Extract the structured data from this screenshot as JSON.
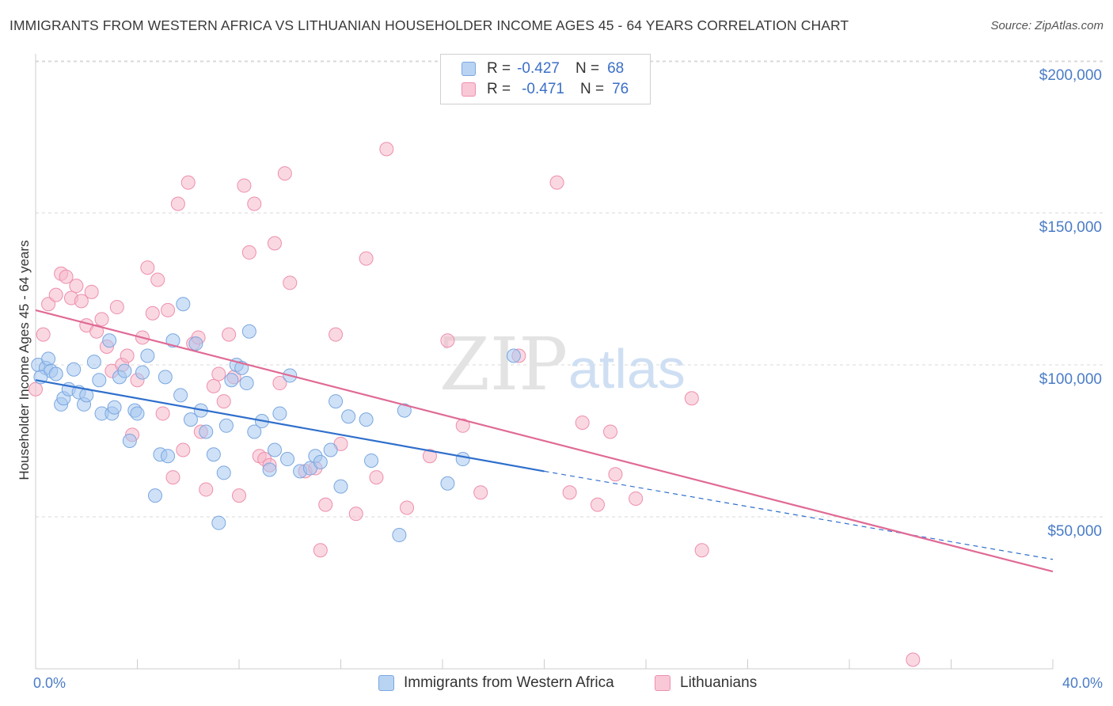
{
  "title": "IMMIGRANTS FROM WESTERN AFRICA VS LITHUANIAN HOUSEHOLDER INCOME AGES 45 - 64 YEARS CORRELATION CHART",
  "source": "Source: ZipAtlas.com",
  "watermark": {
    "zip": "ZIP",
    "atlas": "atlas"
  },
  "colors": {
    "blue": "#a8c8f0",
    "blue_stroke": "#7aa7e0",
    "blue_line": "#2f6fcc",
    "pink": "#f6b8cb",
    "pink_stroke": "#ee8fac",
    "pink_line": "#e06a95",
    "axis_text": "#4a7cc7",
    "grid": "#d8d8d8"
  },
  "legend": {
    "rows": [
      {
        "r_label": "R =",
        "r_value": "-0.427",
        "n_label": "N =",
        "n_value": "68"
      },
      {
        "r_label": "R =",
        "r_value": "-0.471",
        "n_label": "N =",
        "n_value": "76"
      }
    ]
  },
  "bottom_legend": [
    "Immigrants from Western Africa",
    "Lithuanians"
  ],
  "chart_data": {
    "type": "scatter",
    "xlabel": "",
    "ylabel": "Householder Income Ages 45 - 64 years",
    "xlim": [
      0,
      40
    ],
    "ylim": [
      0,
      210000
    ],
    "x_tick_labels": [
      "0.0%",
      "40.0%"
    ],
    "y_ticks": [
      {
        "value": 50000,
        "label": "$50,000"
      },
      {
        "value": 100000,
        "label": "$100,000"
      },
      {
        "value": 150000,
        "label": "$150,000"
      },
      {
        "value": 200000,
        "label": "$200,000"
      }
    ],
    "grid": true,
    "legend_placement": "top-center",
    "series": [
      {
        "name": "Immigrants from Western Africa",
        "color": "#a8c8f0",
        "trend": {
          "x0": 0,
          "y0": 95000,
          "x1": 20,
          "y1": 65000,
          "dash_to_x": 40,
          "dash_to_y": 36000
        },
        "points": [
          [
            0.1,
            100000
          ],
          [
            0.4,
            99000
          ],
          [
            0.5,
            102000
          ],
          [
            0.6,
            98000
          ],
          [
            0.8,
            97000
          ],
          [
            1.0,
            87000
          ],
          [
            1.1,
            89000
          ],
          [
            1.3,
            92000
          ],
          [
            1.5,
            98500
          ],
          [
            1.7,
            91000
          ],
          [
            1.9,
            87000
          ],
          [
            2.0,
            90000
          ],
          [
            2.3,
            101000
          ],
          [
            2.5,
            95000
          ],
          [
            2.6,
            84000
          ],
          [
            2.9,
            108000
          ],
          [
            3.0,
            84000
          ],
          [
            3.1,
            86000
          ],
          [
            3.3,
            96000
          ],
          [
            3.5,
            98000
          ],
          [
            3.7,
            75000
          ],
          [
            3.9,
            85000
          ],
          [
            4.0,
            84000
          ],
          [
            4.2,
            97500
          ],
          [
            4.4,
            103000
          ],
          [
            4.7,
            57000
          ],
          [
            4.9,
            70500
          ],
          [
            5.1,
            96000
          ],
          [
            5.2,
            70000
          ],
          [
            5.4,
            108000
          ],
          [
            5.7,
            90000
          ],
          [
            5.8,
            120000
          ],
          [
            6.1,
            82000
          ],
          [
            6.3,
            107000
          ],
          [
            6.5,
            85000
          ],
          [
            6.7,
            78000
          ],
          [
            7.0,
            70500
          ],
          [
            7.2,
            48000
          ],
          [
            7.4,
            64500
          ],
          [
            7.5,
            80000
          ],
          [
            7.7,
            95000
          ],
          [
            7.9,
            100000
          ],
          [
            8.1,
            99000
          ],
          [
            8.3,
            94000
          ],
          [
            8.4,
            111000
          ],
          [
            8.6,
            78000
          ],
          [
            8.9,
            81500
          ],
          [
            9.2,
            65500
          ],
          [
            9.4,
            72000
          ],
          [
            9.6,
            84000
          ],
          [
            9.9,
            69000
          ],
          [
            10.0,
            96500
          ],
          [
            10.4,
            65000
          ],
          [
            10.8,
            66000
          ],
          [
            11.0,
            70000
          ],
          [
            11.2,
            68000
          ],
          [
            11.6,
            72000
          ],
          [
            11.8,
            88000
          ],
          [
            12.0,
            60000
          ],
          [
            12.3,
            83000
          ],
          [
            13.0,
            82000
          ],
          [
            13.2,
            68500
          ],
          [
            14.3,
            44000
          ],
          [
            14.5,
            85000
          ],
          [
            16.2,
            61000
          ],
          [
            16.8,
            69000
          ],
          [
            18.8,
            103000
          ],
          [
            0.2,
            96000
          ]
        ]
      },
      {
        "name": "Lithuanians",
        "color": "#f6b8cb",
        "trend": {
          "x0": 0,
          "y0": 118000,
          "x1": 40,
          "y1": 32000
        },
        "points": [
          [
            0.0,
            92000
          ],
          [
            0.3,
            110000
          ],
          [
            0.5,
            120000
          ],
          [
            0.8,
            123000
          ],
          [
            1.0,
            130000
          ],
          [
            1.2,
            129000
          ],
          [
            1.4,
            122000
          ],
          [
            1.6,
            126000
          ],
          [
            1.8,
            121000
          ],
          [
            2.0,
            113000
          ],
          [
            2.2,
            124000
          ],
          [
            2.4,
            111000
          ],
          [
            2.6,
            115000
          ],
          [
            2.8,
            106000
          ],
          [
            3.0,
            98000
          ],
          [
            3.2,
            119000
          ],
          [
            3.4,
            100000
          ],
          [
            3.6,
            103000
          ],
          [
            3.8,
            77000
          ],
          [
            4.0,
            95000
          ],
          [
            4.2,
            109000
          ],
          [
            4.4,
            132000
          ],
          [
            4.6,
            117000
          ],
          [
            4.8,
            128000
          ],
          [
            5.0,
            84000
          ],
          [
            5.2,
            118000
          ],
          [
            5.4,
            63000
          ],
          [
            5.6,
            153000
          ],
          [
            5.8,
            72000
          ],
          [
            6.0,
            160000
          ],
          [
            6.2,
            107000
          ],
          [
            6.4,
            109000
          ],
          [
            6.5,
            78000
          ],
          [
            6.7,
            59000
          ],
          [
            7.0,
            93000
          ],
          [
            7.2,
            97000
          ],
          [
            7.4,
            88000
          ],
          [
            7.6,
            110000
          ],
          [
            7.8,
            96000
          ],
          [
            8.0,
            57000
          ],
          [
            8.2,
            159000
          ],
          [
            8.4,
            137000
          ],
          [
            8.6,
            153000
          ],
          [
            8.8,
            70000
          ],
          [
            9.0,
            69000
          ],
          [
            9.2,
            67000
          ],
          [
            9.4,
            140000
          ],
          [
            9.6,
            94000
          ],
          [
            9.8,
            163000
          ],
          [
            10.0,
            127000
          ],
          [
            10.6,
            65000
          ],
          [
            11.0,
            66000
          ],
          [
            11.2,
            39000
          ],
          [
            11.4,
            54000
          ],
          [
            11.8,
            110000
          ],
          [
            12.0,
            74000
          ],
          [
            12.6,
            51000
          ],
          [
            13.0,
            135000
          ],
          [
            13.4,
            63000
          ],
          [
            13.8,
            171000
          ],
          [
            14.6,
            53000
          ],
          [
            15.5,
            70000
          ],
          [
            16.2,
            108000
          ],
          [
            16.8,
            80000
          ],
          [
            17.5,
            58000
          ],
          [
            19.0,
            103000
          ],
          [
            20.5,
            160000
          ],
          [
            21.0,
            58000
          ],
          [
            21.5,
            81000
          ],
          [
            22.1,
            54000
          ],
          [
            22.6,
            78000
          ],
          [
            22.8,
            64000
          ],
          [
            23.6,
            56000
          ],
          [
            25.8,
            89000
          ],
          [
            26.2,
            39000
          ],
          [
            34.5,
            3000
          ]
        ]
      }
    ]
  }
}
